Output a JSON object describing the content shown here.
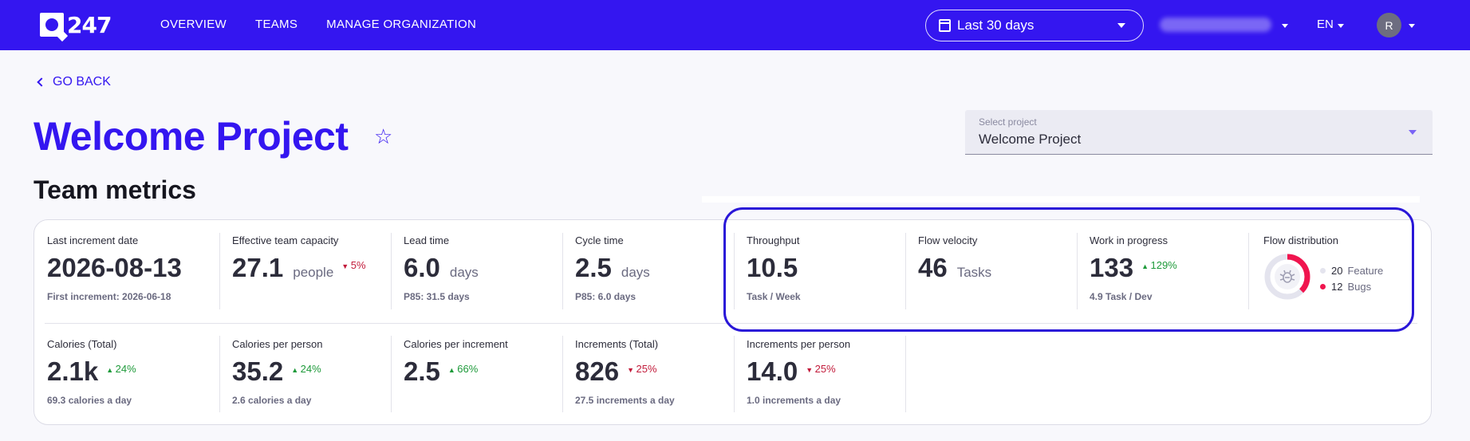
{
  "brand": {
    "logo_text": "247"
  },
  "nav": {
    "items": [
      "OVERVIEW",
      "TEAMS",
      "MANAGE ORGANIZATION"
    ]
  },
  "date_range": {
    "label": "Last 30 days"
  },
  "language": {
    "label": "EN"
  },
  "user": {
    "initial": "R"
  },
  "back": {
    "label": "GO BACK"
  },
  "page": {
    "title": "Welcome Project",
    "section_title": "Team metrics"
  },
  "project_select": {
    "label": "Select project",
    "value": "Welcome Project"
  },
  "metrics_row1": [
    {
      "label": "Last increment date",
      "value": "2026-08-13",
      "unit": "",
      "change": "",
      "direction": "",
      "sub": "First increment: 2026-06-18"
    },
    {
      "label": "Effective team capacity",
      "value": "27.1",
      "unit": "people",
      "change": "5%",
      "direction": "down",
      "sub": ""
    },
    {
      "label": "Lead time",
      "value": "6.0",
      "unit": "days",
      "change": "",
      "direction": "",
      "sub": "P85: 31.5 days"
    },
    {
      "label": "Cycle time",
      "value": "2.5",
      "unit": "days",
      "change": "",
      "direction": "",
      "sub": "P85: 6.0 days"
    },
    {
      "label": "Throughput",
      "value": "10.5",
      "unit": "",
      "change": "",
      "direction": "",
      "sub": "Task / Week"
    },
    {
      "label": "Flow velocity",
      "value": "46",
      "unit": "Tasks",
      "change": "",
      "direction": "",
      "sub": ""
    },
    {
      "label": "Work in progress",
      "value": "133",
      "unit": "",
      "change": "129%",
      "direction": "up",
      "sub": "4.9 Task / Dev"
    }
  ],
  "flow_distribution": {
    "label": "Flow distribution",
    "items": [
      {
        "count": "20",
        "name": "Feature",
        "color": "#e4e4ee"
      },
      {
        "count": "12",
        "name": "Bugs",
        "color": "#f0154e"
      }
    ],
    "icon": "bug-icon"
  },
  "metrics_row2": [
    {
      "label": "Calories (Total)",
      "value": "2.1k",
      "change": "24%",
      "direction": "up",
      "sub": "69.3 calories a day"
    },
    {
      "label": "Calories per person",
      "value": "35.2",
      "change": "24%",
      "direction": "up",
      "sub": "2.6 calories a day"
    },
    {
      "label": "Calories per increment",
      "value": "2.5",
      "change": "66%",
      "direction": "up",
      "sub": ""
    },
    {
      "label": "Increments (Total)",
      "value": "826",
      "change": "25%",
      "direction": "down",
      "sub": "27.5 increments a day"
    },
    {
      "label": "Increments per person",
      "value": "14.0",
      "change": "25%",
      "direction": "down",
      "sub": "1.0 increments a day"
    }
  ],
  "arrows": {
    "up": "▲",
    "down": "▼"
  },
  "colors": {
    "brand": "#3416f0",
    "up": "#1e9a3a",
    "down": "#c21a3a",
    "bugs": "#f0154e"
  }
}
